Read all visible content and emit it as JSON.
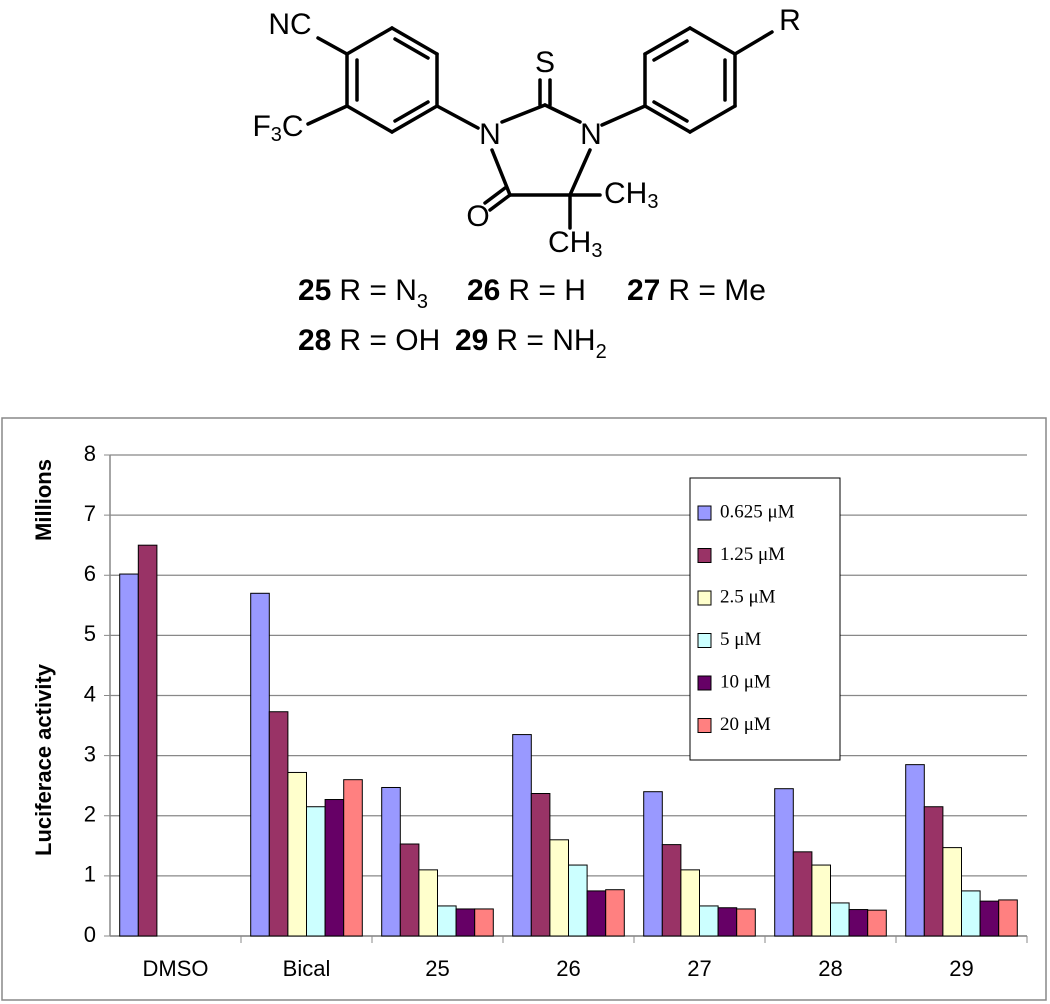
{
  "structure": {
    "nc": "NC",
    "f3c": [
      "F",
      "3",
      "C"
    ],
    "s": "S",
    "n": [
      "N",
      "N"
    ],
    "o": "O",
    "ch3": [
      [
        "CH",
        "3"
      ],
      [
        "CH",
        "3"
      ]
    ],
    "r": "R"
  },
  "compounds": [
    {
      "id": "25",
      "label": "R = N",
      "sub": "3"
    },
    {
      "id": "26",
      "label": "R = H"
    },
    {
      "id": "27",
      "label": "R = Me"
    },
    {
      "id": "28",
      "label": "R = OH"
    },
    {
      "id": "29",
      "label": "R = NH",
      "sub": "2"
    }
  ],
  "chart_data": {
    "type": "bar",
    "y_label": "Luciferace activity",
    "y_unit": "Millions",
    "categories": [
      "DMSO",
      "Bical",
      "25",
      "26",
      "27",
      "28",
      "29"
    ],
    "series": [
      {
        "name": "0.625 μM",
        "color": "#9999ff",
        "values": [
          6.02,
          5.7,
          2.47,
          3.35,
          2.4,
          2.45,
          2.85
        ]
      },
      {
        "name": "1.25 μM",
        "color": "#993366",
        "values": [
          6.5,
          3.73,
          1.53,
          2.37,
          1.52,
          1.4,
          2.15
        ]
      },
      {
        "name": "2.5 μM",
        "color": "#ffffcc",
        "values": [
          null,
          2.72,
          1.1,
          1.6,
          1.1,
          1.18,
          1.47
        ]
      },
      {
        "name": "5 μM",
        "color": "#ccffff",
        "values": [
          null,
          2.15,
          0.5,
          1.18,
          0.5,
          0.55,
          0.75
        ]
      },
      {
        "name": "10 μM",
        "color": "#660066",
        "values": [
          null,
          2.27,
          0.45,
          0.75,
          0.47,
          0.44,
          0.58
        ]
      },
      {
        "name": "20 μM",
        "color": "#ff8080",
        "values": [
          null,
          2.6,
          0.45,
          0.77,
          0.45,
          0.43,
          0.6
        ]
      }
    ],
    "ylim": [
      0,
      8
    ],
    "yticks": [
      0,
      1,
      2,
      3,
      4,
      5,
      6,
      7,
      8
    ],
    "grid": true,
    "legend_position": "upper right"
  }
}
